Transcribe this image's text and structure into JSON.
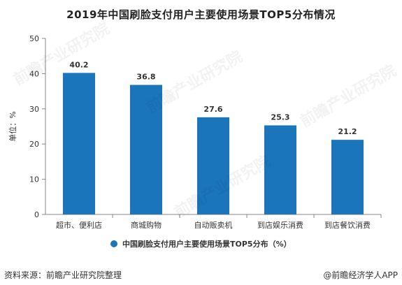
{
  "title": "2019年中国刷脸支付用户主要使用场景TOP5分布情况",
  "source": "资料来源：前瞻产业研究院整理",
  "credit": "@前瞻经济学人APP",
  "chart_data": {
    "type": "bar",
    "title": "2019年中国刷脸支付用户主要使用场景TOP5分布情况",
    "categories": [
      "超市、便利店",
      "商城购物",
      "自动贩卖机",
      "到店娱乐消费",
      "到店餐饮消费"
    ],
    "series": [
      {
        "name": "中国刷脸支付用户主要使用场景TOP5分布（%）",
        "values": [
          40.2,
          36.8,
          27.6,
          25.3,
          21.2
        ]
      }
    ],
    "value_labels": [
      "40.2",
      "36.8",
      "27.6",
      "25.3",
      "21.2"
    ],
    "yticks": [
      "0",
      "10",
      "20",
      "30",
      "40",
      "50"
    ],
    "ylabel": "单位：%",
    "xlabel": "",
    "ylim": [
      0,
      50
    ],
    "grid": false,
    "legend": "bottom-center",
    "colors": {
      "bar": "#1b75bb",
      "axis": "#888888",
      "text": "#333333"
    }
  }
}
